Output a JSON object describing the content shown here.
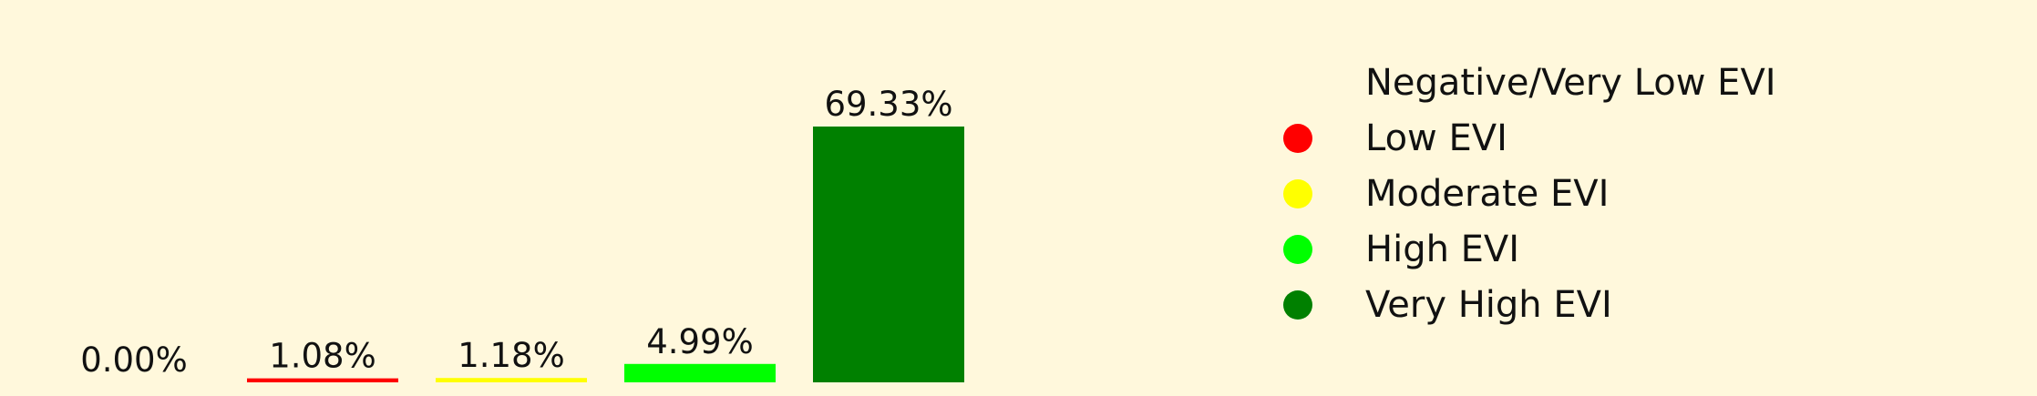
{
  "chart_data": {
    "type": "bar",
    "categories": [
      "Negative/Very Low EVI",
      "Low EVI",
      "Moderate EVI",
      "High EVI",
      "Very High EVI"
    ],
    "values": [
      0.0,
      1.08,
      1.18,
      4.99,
      69.33
    ],
    "data_labels": [
      "0.00%",
      "1.08%",
      "1.18%",
      "4.99%",
      "69.33%"
    ],
    "colors": [
      "#fff8dc",
      "#ff0000",
      "#ffff00",
      "#00ff00",
      "#008000"
    ],
    "ylim": [
      0,
      69.33
    ],
    "grid": false,
    "legend_position": "right",
    "title": "",
    "xlabel": "",
    "ylabel": ""
  }
}
